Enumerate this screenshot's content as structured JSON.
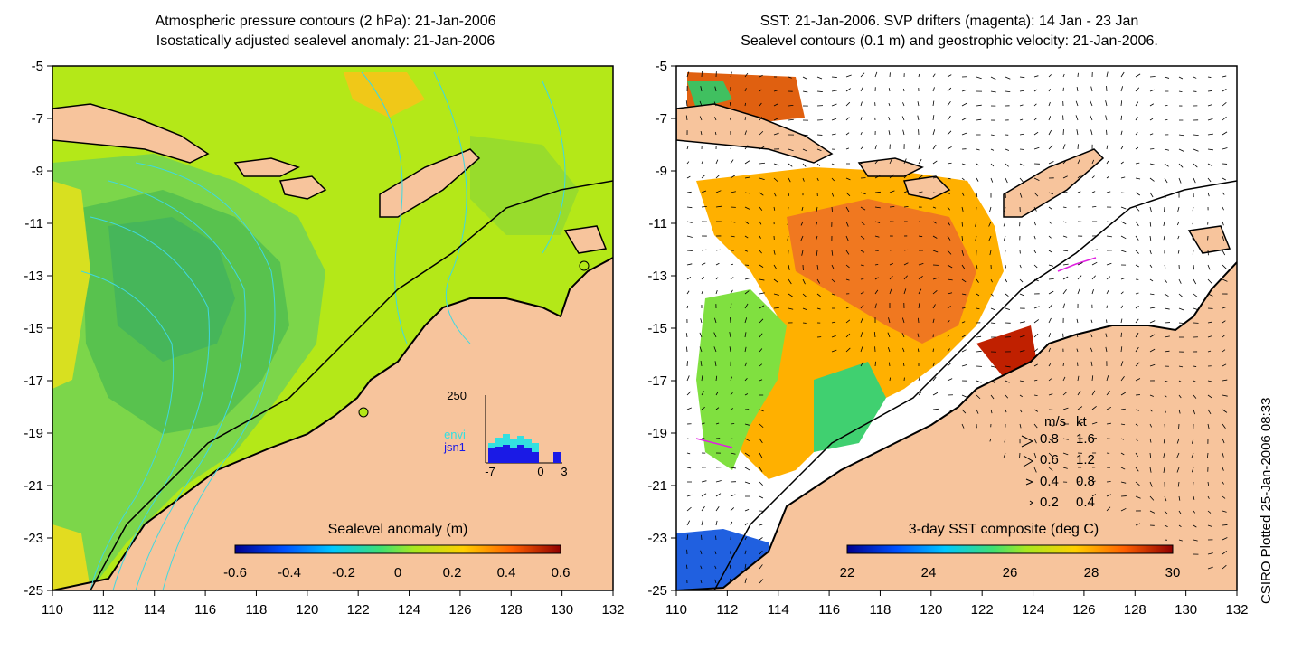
{
  "left_panel": {
    "title_line1": "Atmospheric pressure contours (2 hPa): 21-Jan-2006",
    "title_line2": "Isostatically adjusted sealevel anomaly: 21-Jan-2006",
    "colorbar_label": "Sealevel anomaly (m)",
    "colorbar_ticks": [
      "-0.6",
      "-0.4",
      "-0.2",
      "0",
      "0.2",
      "0.4",
      "0.6"
    ],
    "inset": {
      "y_label": "250",
      "x_ticks": [
        "-7",
        "0",
        "3"
      ],
      "legend_envi": "envi",
      "legend_jsn1": "jsn1",
      "envi_color": "#33e0e0",
      "jsn1_color": "#1a1ae6"
    }
  },
  "right_panel": {
    "title_line1": "SST: 21-Jan-2006. SVP drifters (magenta): 14 Jan - 23 Jan",
    "title_line2": "Sealevel contours (0.1 m) and geostrophic velocity: 21-Jan-2006.",
    "colorbar_label": "3-day SST composite (deg C)",
    "colorbar_ticks": [
      "22",
      "24",
      "26",
      "28",
      "30"
    ],
    "velocity_legend": {
      "header_ms": "m/s",
      "header_kt": "kt",
      "rows": [
        {
          "ms": "0.8",
          "kt": "1.6"
        },
        {
          "ms": "0.6",
          "kt": "1.2"
        },
        {
          "ms": "0.4",
          "kt": "0.8"
        },
        {
          "ms": "0.2",
          "kt": "0.4"
        }
      ]
    },
    "drifter_color": "#e020e0"
  },
  "y_ticks": [
    "-5",
    "-7",
    "-9",
    "-11",
    "-13",
    "-15",
    "-17",
    "-19",
    "-21",
    "-23",
    "-25"
  ],
  "x_ticks": [
    "110",
    "112",
    "114",
    "116",
    "118",
    "120",
    "122",
    "124",
    "126",
    "128",
    "130",
    "132"
  ],
  "side_stamp": "CSIRO Plotted 25-Jan-2006 08:33",
  "colors": {
    "land": "#f7c49c",
    "coast": "#000000",
    "contour": "#40d8e0",
    "no_data": "#ffffff"
  }
}
